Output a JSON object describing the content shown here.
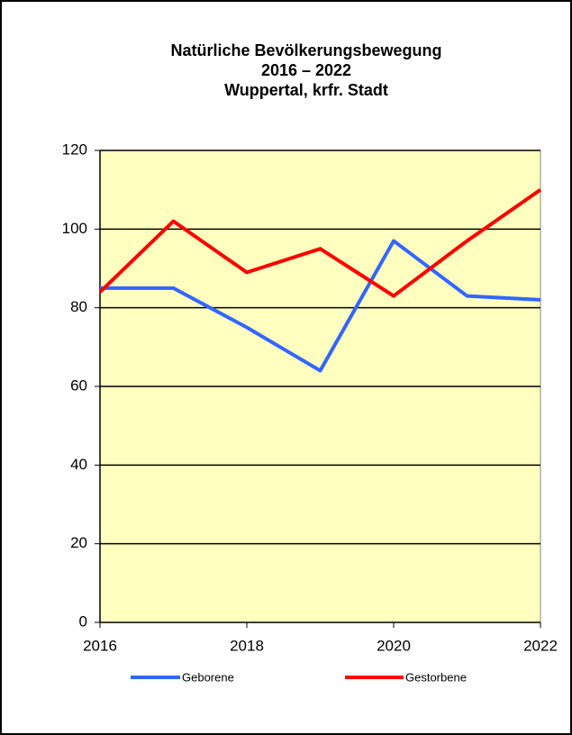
{
  "chart_data": {
    "type": "line",
    "title": "Natürliche Bevölkerungsbewegung",
    "subtitle": [
      "2016 – 2022",
      "Wuppertal, krfr. Stadt"
    ],
    "x": [
      2016,
      2017,
      2018,
      2019,
      2020,
      2021,
      2022
    ],
    "series": [
      {
        "name": "Geborene",
        "color": "#3366ff",
        "values": [
          85,
          85,
          75,
          64,
          97,
          83,
          82
        ]
      },
      {
        "name": "Gestorbene",
        "color": "#ff0000",
        "values": [
          84,
          102,
          89,
          95,
          83,
          97,
          110
        ]
      }
    ],
    "xlim": [
      2016,
      2022
    ],
    "xticks": [
      2016,
      2018,
      2020,
      2022
    ],
    "ylim": [
      0,
      120
    ],
    "yticks": [
      0,
      20,
      40,
      60,
      80,
      100,
      120
    ],
    "grid": true,
    "legend": "bottom",
    "plot_background": "#ffffc0"
  }
}
